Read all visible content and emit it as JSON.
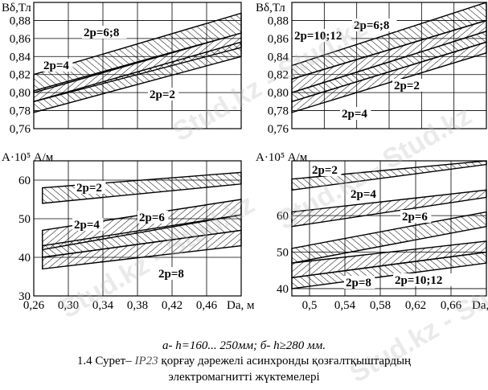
{
  "watermark": "Stud.kz - Stud.kz",
  "caption": {
    "line1": "а-  h=160... 250мм; б-  h≥280 мм.",
    "fig_no": "1.4 Сурет–",
    "fig_ref": "IP23",
    "line2_rest": "қорғау дәрежелі асинхронды қозғалтқыштардың",
    "line3": "электромагнитті жүктемелері"
  },
  "chart_data": [
    {
      "id": "a-Bdelta",
      "type": "area",
      "ylabel": "Bδ,Тл",
      "ylim": [
        0.76,
        0.9
      ],
      "yticks": [
        "0,76",
        "0,78",
        "0,80",
        "0,82",
        "0,84",
        "0,86",
        "0,88"
      ],
      "xlim": [
        0.26,
        0.5
      ],
      "grid": true,
      "bands": [
        {
          "name": "2p=6;8",
          "x": [
            0.26,
            0.5
          ],
          "lower": [
            0.8,
            0.866
          ],
          "upper": [
            0.82,
            0.888
          ]
        },
        {
          "name": "2p=4",
          "x": [
            0.26,
            0.5
          ],
          "lower": [
            0.79,
            0.85
          ],
          "upper": [
            0.802,
            0.866
          ]
        },
        {
          "name": "2p=2",
          "x": [
            0.26,
            0.5
          ],
          "lower": [
            0.778,
            0.84
          ],
          "upper": [
            0.79,
            0.856
          ]
        }
      ],
      "labels": [
        "2p=6;8",
        "2p=4",
        "2p=2"
      ]
    },
    {
      "id": "b-Bdelta",
      "type": "area",
      "ylabel": "Bδ,Тл",
      "ylim": [
        0.76,
        0.9
      ],
      "yticks": [
        "0,76",
        "0,78",
        "0,80",
        "0,82",
        "0,84",
        "0,86",
        "0,88"
      ],
      "xlim": [
        0.48,
        0.7
      ],
      "grid": true,
      "bands": [
        {
          "name": "2p=10;12",
          "x": [
            0.48,
            0.7
          ],
          "lower": [
            0.815,
            0.88
          ],
          "upper": [
            0.83,
            0.9
          ]
        },
        {
          "name": "2p=6;8",
          "x": [
            0.48,
            0.7
          ],
          "lower": [
            0.8,
            0.868
          ],
          "upper": [
            0.815,
            0.88
          ]
        },
        {
          "name": "2p=2",
          "x": [
            0.48,
            0.7
          ],
          "lower": [
            0.79,
            0.856
          ],
          "upper": [
            0.8,
            0.868
          ]
        },
        {
          "name": "2p=4",
          "x": [
            0.48,
            0.7
          ],
          "lower": [
            0.778,
            0.844
          ],
          "upper": [
            0.79,
            0.856
          ]
        }
      ],
      "labels": [
        "2p=10;12",
        "2p=6;8",
        "2p=2",
        "2p=4"
      ]
    },
    {
      "id": "a-A",
      "type": "area",
      "ylabel": "A·10⁵ А/м",
      "ylim": [
        30,
        65
      ],
      "yticks": [
        "30",
        "40",
        "50",
        "60"
      ],
      "xlabel": "Da, м",
      "xlim": [
        0.26,
        0.5
      ],
      "xticks": [
        "0,26",
        "0,30",
        "0,34",
        "0,38",
        "0,42",
        "0,46"
      ],
      "xtick_values": [
        0.26,
        0.3,
        0.34,
        0.38,
        0.42,
        0.46
      ],
      "grid": true,
      "bands": [
        {
          "name": "2p=2",
          "x": [
            0.27,
            0.5
          ],
          "lower": [
            54,
            59
          ],
          "upper": [
            58,
            62
          ]
        },
        {
          "name": "2p=4",
          "x": [
            0.27,
            0.5
          ],
          "lower": [
            42,
            51
          ],
          "upper": [
            47,
            55
          ]
        },
        {
          "name": "2p=6",
          "x": [
            0.27,
            0.5
          ],
          "lower": [
            40,
            47
          ],
          "upper": [
            43,
            51
          ]
        },
        {
          "name": "2p=8",
          "x": [
            0.27,
            0.5
          ],
          "lower": [
            37,
            43
          ],
          "upper": [
            40,
            47
          ]
        }
      ],
      "labels": [
        "2p=2",
        "2p=4",
        "2p=6",
        "2p=8"
      ]
    },
    {
      "id": "b-A",
      "type": "area",
      "ylabel": "A·10⁵ А/м",
      "ylim": [
        38,
        75
      ],
      "yticks": [
        "40",
        "50",
        "60"
      ],
      "xlabel": "Da, м",
      "xlim": [
        0.48,
        0.7
      ],
      "xticks": [
        "0,5",
        "0,54",
        "0,58",
        "0,62",
        "0,66"
      ],
      "xtick_values": [
        0.5,
        0.54,
        0.58,
        0.62,
        0.66
      ],
      "grid": true,
      "bands": [
        {
          "name": "2p=2",
          "x": [
            0.48,
            0.7
          ],
          "lower": [
            67,
            74
          ],
          "upper": [
            70,
            75
          ]
        },
        {
          "name": "2p=4",
          "x": [
            0.48,
            0.7
          ],
          "lower": [
            57,
            65
          ],
          "upper": [
            61,
            67
          ]
        },
        {
          "name": "2p=6",
          "x": [
            0.48,
            0.7
          ],
          "lower": [
            47,
            57
          ],
          "upper": [
            51,
            61
          ]
        },
        {
          "name": "2p=8",
          "x": [
            0.48,
            0.7
          ],
          "lower": [
            43,
            50
          ],
          "upper": [
            47,
            53
          ]
        },
        {
          "name": "2p=10;12",
          "x": [
            0.48,
            0.7
          ],
          "lower": [
            40,
            47
          ],
          "upper": [
            43,
            50
          ]
        }
      ],
      "labels": [
        "2p=2",
        "2p=4",
        "2p=6",
        "2p=8",
        "2p=10;12"
      ]
    }
  ]
}
